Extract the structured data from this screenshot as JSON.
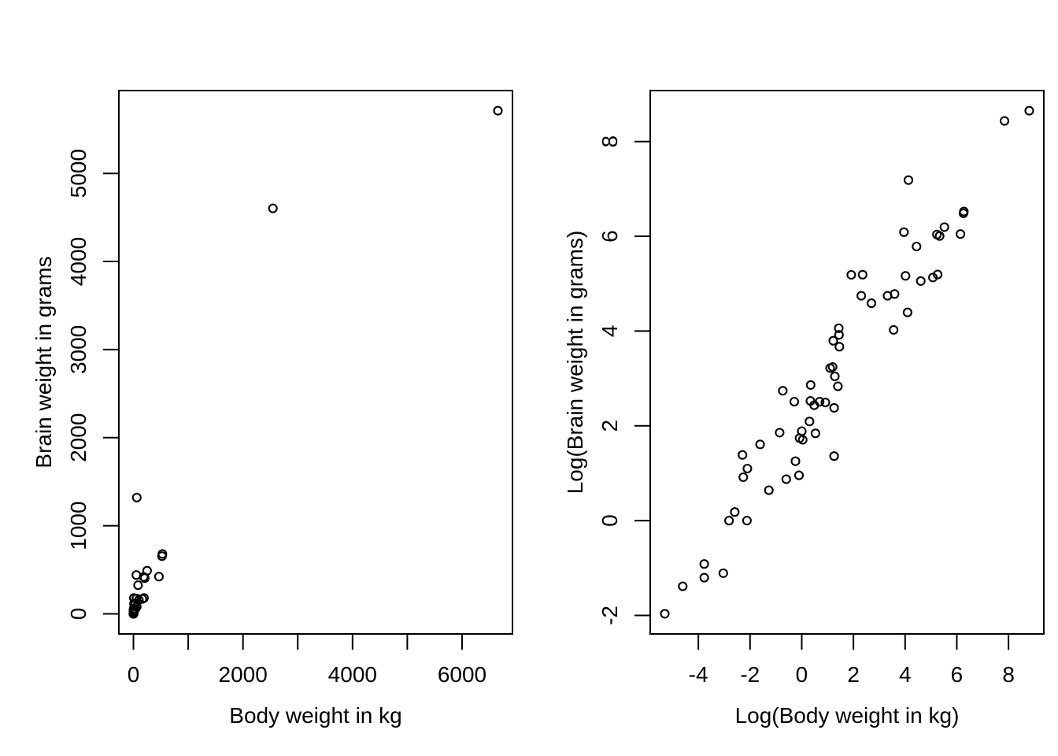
{
  "figure": {
    "background": "#ffffff",
    "foreground": "#000000",
    "marker": "open-circle",
    "panel_count": 2
  },
  "chart_data": [
    {
      "type": "scatter",
      "title": "",
      "xlabel": "Body weight in kg",
      "ylabel": "Brain weight in grams",
      "grid": false,
      "legend": null,
      "xlim": [
        -266.2,
        6920.2
      ],
      "ylim": [
        -228.3,
        5940.5
      ],
      "xticks": [
        0,
        1000,
        2000,
        3000,
        4000,
        5000,
        6000
      ],
      "xtick_labels": [
        "0",
        "",
        "2000",
        "",
        "4000",
        "",
        "6000"
      ],
      "yticks": [
        0,
        1000,
        2000,
        3000,
        4000,
        5000
      ],
      "ytick_labels": [
        "0",
        "1000",
        "2000",
        "3000",
        "4000",
        "5000"
      ],
      "points": [
        [
          3.385,
          44.5
        ],
        [
          0.48,
          15.5
        ],
        [
          1.35,
          8.1
        ],
        [
          465,
          423
        ],
        [
          36.33,
          119.5
        ],
        [
          27.66,
          115
        ],
        [
          14.83,
          98.2
        ],
        [
          1.04,
          5.5
        ],
        [
          4.19,
          58
        ],
        [
          0.425,
          6.4
        ],
        [
          0.101,
          4
        ],
        [
          0.92,
          5.7
        ],
        [
          1,
          6.6
        ],
        [
          0.005,
          0.14
        ],
        [
          0.06,
          1
        ],
        [
          3.5,
          10.8
        ],
        [
          2,
          12.3
        ],
        [
          1.7,
          6.3
        ],
        [
          2547,
          4603
        ],
        [
          0.023,
          0.3
        ],
        [
          187.1,
          419
        ],
        [
          521,
          655
        ],
        [
          0.785,
          3.5
        ],
        [
          10,
          115
        ],
        [
          3.3,
          25.6
        ],
        [
          0.2,
          5
        ],
        [
          1.41,
          17.5
        ],
        [
          529,
          680
        ],
        [
          207,
          406
        ],
        [
          85,
          325
        ],
        [
          0.75,
          12.3
        ],
        [
          62,
          1320
        ],
        [
          6654,
          5712
        ],
        [
          3.5,
          3.9
        ],
        [
          6.8,
          179
        ],
        [
          35,
          56
        ],
        [
          4.05,
          17
        ],
        [
          0.12,
          1
        ],
        [
          0.023,
          0.4
        ],
        [
          0.01,
          0.25
        ],
        [
          1.4,
          12.5
        ],
        [
          250,
          490
        ],
        [
          2.5,
          12.1
        ],
        [
          55.5,
          175
        ],
        [
          100,
          157
        ],
        [
          52.16,
          440
        ],
        [
          10.55,
          179.5
        ],
        [
          0.55,
          2.4
        ],
        [
          60,
          81
        ],
        [
          3.6,
          21
        ],
        [
          4.288,
          39.2
        ],
        [
          0.28,
          1.9
        ],
        [
          0.075,
          1.2
        ],
        [
          0.122,
          3
        ],
        [
          0.048,
          0.33
        ],
        [
          192,
          180
        ],
        [
          3,
          25
        ],
        [
          160,
          169
        ],
        [
          0.9,
          2.6
        ],
        [
          1.62,
          11.4
        ],
        [
          0.104,
          2.5
        ],
        [
          4.235,
          50.4
        ]
      ]
    },
    {
      "type": "scatter",
      "title": "",
      "xlabel": "Log(Body weight in kg)",
      "ylabel": "Log(Brain weight in grams)",
      "grid": false,
      "legend": null,
      "xlim": [
        -5.862,
        9.367
      ],
      "ylim": [
        -2.391,
        9.075
      ],
      "xticks": [
        -4,
        -2,
        0,
        2,
        4,
        6,
        8
      ],
      "xtick_labels": [
        "-4",
        "-2",
        "0",
        "2",
        "4",
        "6",
        "8"
      ],
      "yticks": [
        -2,
        0,
        2,
        4,
        6,
        8
      ],
      "ytick_labels": [
        "-2",
        "0",
        "2",
        "4",
        "6",
        "8"
      ],
      "points": [
        [
          1.219,
          3.795
        ],
        [
          -0.734,
          2.741
        ],
        [
          0.3,
          2.092
        ],
        [
          6.142,
          6.047
        ],
        [
          3.593,
          4.783
        ],
        [
          3.32,
          4.745
        ],
        [
          2.697,
          4.587
        ],
        [
          0.039,
          1.705
        ],
        [
          1.433,
          4.06
        ],
        [
          -0.856,
          1.856
        ],
        [
          -2.293,
          1.386
        ],
        [
          -0.083,
          1.74
        ],
        [
          0,
          1.887
        ],
        [
          -5.298,
          -1.966
        ],
        [
          -2.813,
          0
        ],
        [
          1.253,
          2.38
        ],
        [
          0.693,
          2.51
        ],
        [
          0.531,
          1.841
        ],
        [
          7.843,
          8.434
        ],
        [
          -3.772,
          -1.204
        ],
        [
          5.232,
          6.038
        ],
        [
          6.256,
          6.485
        ],
        [
          -0.242,
          1.253
        ],
        [
          2.303,
          4.745
        ],
        [
          1.194,
          3.243
        ],
        [
          -1.609,
          1.609
        ],
        [
          0.344,
          2.862
        ],
        [
          6.271,
          6.522
        ],
        [
          5.333,
          6.006
        ],
        [
          4.443,
          5.784
        ],
        [
          -0.288,
          2.51
        ],
        [
          4.127,
          7.185
        ],
        [
          8.803,
          8.65
        ],
        [
          1.253,
          1.361
        ],
        [
          1.917,
          5.187
        ],
        [
          3.555,
          4.025
        ],
        [
          1.399,
          2.833
        ],
        [
          -2.12,
          0
        ],
        [
          -3.772,
          -0.916
        ],
        [
          -4.605,
          -1.386
        ],
        [
          0.336,
          2.526
        ],
        [
          5.521,
          6.194
        ],
        [
          0.916,
          2.493
        ],
        [
          4.016,
          5.165
        ],
        [
          4.605,
          5.056
        ],
        [
          3.954,
          6.087
        ],
        [
          2.356,
          5.19
        ],
        [
          -0.598,
          0.875
        ],
        [
          4.094,
          4.394
        ],
        [
          1.281,
          3.045
        ],
        [
          1.456,
          3.669
        ],
        [
          -1.273,
          0.642
        ],
        [
          -2.59,
          0.182
        ],
        [
          -2.104,
          1.099
        ],
        [
          -3.037,
          -1.109
        ],
        [
          5.257,
          5.193
        ],
        [
          1.099,
          3.219
        ],
        [
          5.075,
          5.13
        ],
        [
          -0.105,
          0.956
        ],
        [
          0.482,
          2.434
        ],
        [
          -2.263,
          0.916
        ],
        [
          1.443,
          3.92
        ]
      ]
    }
  ]
}
